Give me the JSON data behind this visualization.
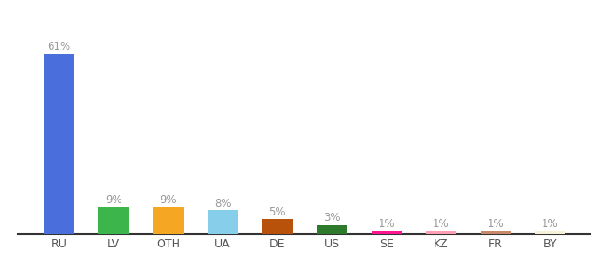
{
  "categories": [
    "RU",
    "LV",
    "OTH",
    "UA",
    "DE",
    "US",
    "SE",
    "KZ",
    "FR",
    "BY"
  ],
  "values": [
    61,
    9,
    9,
    8,
    5,
    3,
    1,
    1,
    1,
    1
  ],
  "colors": [
    "#4a6fdc",
    "#3cb54a",
    "#f5a623",
    "#87ceeb",
    "#b8520a",
    "#2d7a2d",
    "#ff1493",
    "#ff9eb5",
    "#c8896a",
    "#f5f0d8"
  ],
  "label_fontsize": 8.5,
  "tick_fontsize": 9,
  "bg_color": "#ffffff",
  "bar_width": 0.55,
  "ylim": [
    0,
    72
  ],
  "label_color": "#999999",
  "tick_color": "#555555",
  "spine_color": "#333333"
}
